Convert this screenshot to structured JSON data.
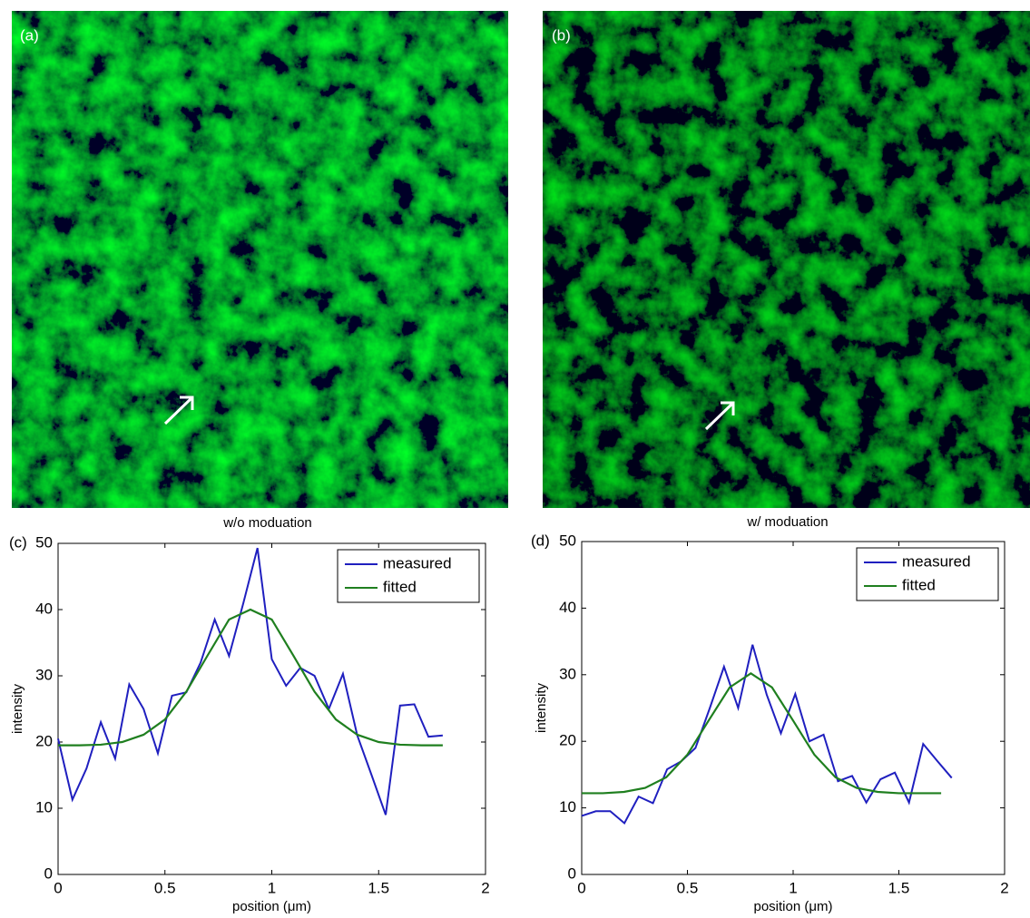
{
  "images": [
    {
      "label": "(a)",
      "caption": "w/o moduation"
    },
    {
      "label": "(b)",
      "caption": "w/ moduation"
    }
  ],
  "chart_data": [
    {
      "type": "line",
      "panel_label": "(c)",
      "x_label": "position (μm)",
      "y_label": "intensity",
      "xlim": [
        0,
        2
      ],
      "xticks": [
        0,
        0.5,
        1,
        1.5,
        2
      ],
      "ylim": [
        0,
        50
      ],
      "yticks": [
        0,
        10,
        20,
        30,
        40,
        50
      ],
      "legend": "top-right",
      "series": [
        {
          "name": "measured",
          "color": "#1f1fbf",
          "x": [
            0,
            0.067,
            0.133,
            0.2,
            0.267,
            0.333,
            0.4,
            0.467,
            0.533,
            0.6,
            0.667,
            0.733,
            0.8,
            0.867,
            0.933,
            1.0,
            1.067,
            1.133,
            1.2,
            1.267,
            1.333,
            1.4,
            1.467,
            1.533,
            1.6,
            1.667,
            1.733,
            1.8
          ],
          "values": [
            20.5,
            11.3,
            16,
            23,
            17.5,
            28.7,
            25,
            18.3,
            27,
            27.5,
            32,
            38.5,
            33,
            41,
            49.3,
            32.5,
            28.5,
            31.2,
            30,
            25,
            30.3,
            21,
            15,
            9,
            25.5,
            25.7,
            20.8,
            21
          ]
        },
        {
          "name": "fitted",
          "color": "#1f7f1f",
          "x": [
            0,
            0.1,
            0.2,
            0.3,
            0.4,
            0.5,
            0.6,
            0.7,
            0.8,
            0.9,
            1.0,
            1.1,
            1.2,
            1.3,
            1.4,
            1.5,
            1.6,
            1.7,
            1.8
          ],
          "values": [
            19.5,
            19.5,
            19.6,
            20.0,
            21.1,
            23.4,
            27.6,
            33.1,
            38.5,
            40,
            38.5,
            33.1,
            27.6,
            23.4,
            21.1,
            20.0,
            19.6,
            19.5,
            19.5
          ]
        }
      ]
    },
    {
      "type": "line",
      "panel_label": "(d)",
      "x_label": "position (μm)",
      "y_label": "intensity",
      "xlim": [
        0,
        2
      ],
      "xticks": [
        0,
        0.5,
        1,
        1.5,
        2
      ],
      "ylim": [
        0,
        50
      ],
      "yticks": [
        0,
        10,
        20,
        30,
        40,
        50
      ],
      "legend": "top-right",
      "series": [
        {
          "name": "measured",
          "color": "#1f1fbf",
          "x": [
            0,
            0.067,
            0.135,
            0.202,
            0.269,
            0.337,
            0.404,
            0.471,
            0.538,
            0.606,
            0.673,
            0.74,
            0.808,
            0.875,
            0.942,
            1.01,
            1.077,
            1.144,
            1.212,
            1.279,
            1.346,
            1.413,
            1.481,
            1.548,
            1.615,
            1.683,
            1.75
          ],
          "values": [
            8.8,
            9.5,
            9.5,
            7.7,
            11.7,
            10.7,
            15.8,
            17,
            19,
            25,
            31.2,
            25,
            34.5,
            27,
            21.2,
            27.1,
            20,
            21,
            14,
            14.8,
            10.8,
            14.3,
            15.3,
            10.8,
            19.6,
            17,
            14.5
          ]
        },
        {
          "name": "fitted",
          "color": "#1f7f1f",
          "x": [
            0,
            0.1,
            0.2,
            0.3,
            0.4,
            0.5,
            0.6,
            0.7,
            0.8,
            0.9,
            1.0,
            1.1,
            1.2,
            1.3,
            1.4,
            1.5,
            1.6,
            1.7
          ],
          "values": [
            12.2,
            12.2,
            12.4,
            13.0,
            14.6,
            18.0,
            23.1,
            28.1,
            30.2,
            28.1,
            23.1,
            18.0,
            14.6,
            13.0,
            12.4,
            12.2,
            12.2,
            12.2
          ]
        }
      ]
    }
  ]
}
